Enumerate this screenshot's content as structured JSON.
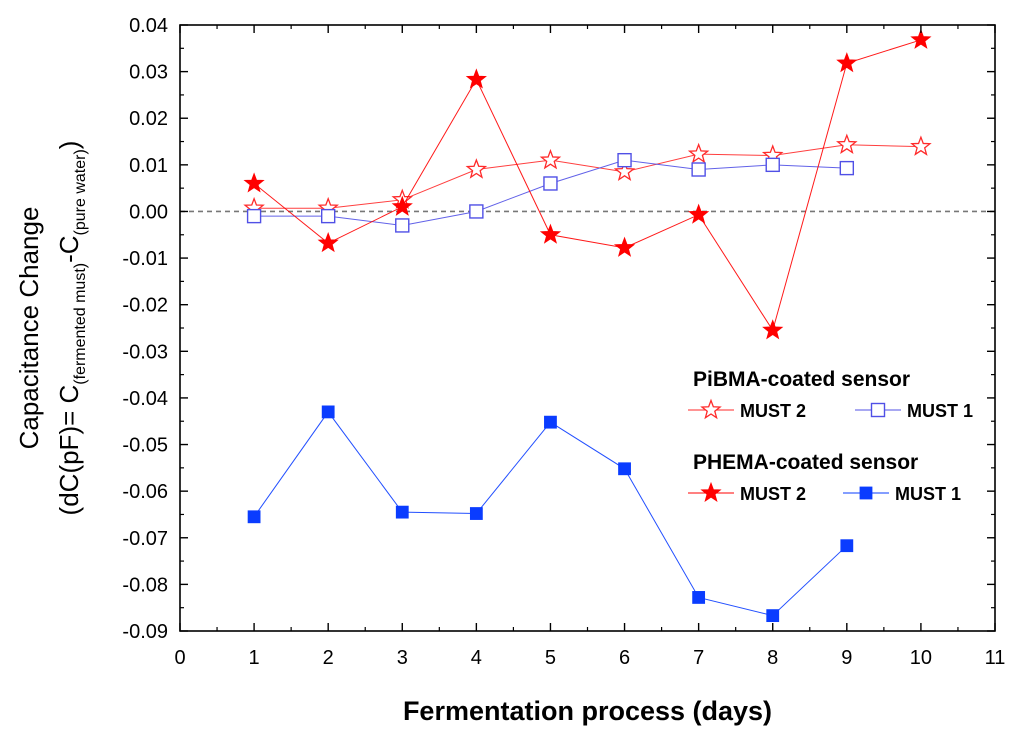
{
  "chart_data": {
    "type": "line",
    "xlabel": "Fermentation process (days)",
    "ylabel": {
      "line1": "Capacitance Change",
      "prefix": "(dC(pF)= C",
      "sub1": "(fermented must)",
      "mid": "-C",
      "sub2": "(pure water)",
      "suffix": ")"
    },
    "xlim": [
      0,
      11
    ],
    "ylim": [
      -0.09,
      0.04
    ],
    "x_ticks": [
      "0",
      "1",
      "2",
      "3",
      "4",
      "5",
      "6",
      "7",
      "8",
      "9",
      "10",
      "11"
    ],
    "y_ticks": [
      "0.04",
      "0.03",
      "0.02",
      "0.01",
      "0.00",
      "-0.01",
      "-0.02",
      "-0.03",
      "-0.04",
      "-0.05",
      "-0.06",
      "-0.07",
      "-0.08",
      "-0.09"
    ],
    "reference_line": 0,
    "legend": {
      "position": "lower-right",
      "groups": [
        {
          "title": "PiBMA-coated sensor",
          "entries": [
            "MUST 2",
            "MUST 1"
          ]
        },
        {
          "title": "PHEMA-coated sensor",
          "entries": [
            "MUST 2",
            "MUST 1"
          ]
        }
      ]
    },
    "series": [
      {
        "name": "MUST 2",
        "group": "PiBMA-coated sensor",
        "marker": "star-open",
        "color": "#ff2a2a",
        "x": [
          1,
          2,
          3,
          4,
          5,
          6,
          7,
          8,
          9,
          10
        ],
        "y": [
          0.0007,
          0.0007,
          0.0025,
          0.009,
          0.011,
          0.0085,
          0.0123,
          0.012,
          0.0143,
          0.0139
        ]
      },
      {
        "name": "MUST 1",
        "group": "PiBMA-coated sensor",
        "marker": "square-open",
        "color": "#5050e6",
        "x": [
          1,
          2,
          3,
          4,
          5,
          6,
          7,
          8,
          9
        ],
        "y": [
          -0.001,
          -0.001,
          -0.003,
          0.0,
          0.006,
          0.011,
          0.009,
          0.01,
          0.0093
        ]
      },
      {
        "name": "MUST 2",
        "group": "PHEMA-coated sensor",
        "marker": "star-filled",
        "color": "#ff0000",
        "x": [
          1,
          2,
          3,
          4,
          5,
          6,
          7,
          8,
          9,
          10
        ],
        "y": [
          0.006,
          -0.0068,
          0.001,
          0.0283,
          -0.005,
          -0.0078,
          -0.0007,
          -0.0255,
          0.0318,
          0.0368
        ]
      },
      {
        "name": "MUST 1",
        "group": "PHEMA-coated sensor",
        "marker": "square-filled",
        "color": "#0a3cff",
        "x": [
          1,
          2,
          3,
          4,
          5,
          6,
          7,
          8,
          9
        ],
        "y": [
          -0.0655,
          -0.043,
          -0.0645,
          -0.0648,
          -0.0452,
          -0.0552,
          -0.0828,
          -0.0867,
          -0.0717
        ]
      }
    ]
  }
}
